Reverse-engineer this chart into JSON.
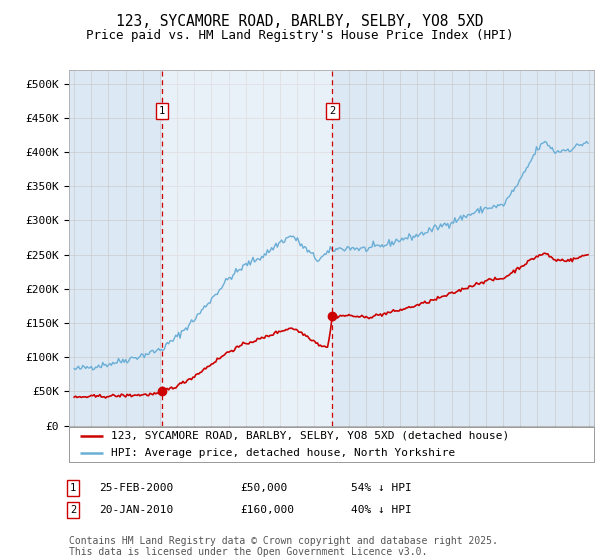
{
  "title": "123, SYCAMORE ROAD, BARLBY, SELBY, YO8 5XD",
  "subtitle": "Price paid vs. HM Land Registry's House Price Index (HPI)",
  "background_color": "#dce9f5",
  "plot_bg_color": "#dce9f5",
  "fig_bg_color": "#ffffff",
  "legend_label_red": "123, SYCAMORE ROAD, BARLBY, SELBY, YO8 5XD (detached house)",
  "legend_label_blue": "HPI: Average price, detached house, North Yorkshire",
  "annotation1_label": "1",
  "annotation1_date": "25-FEB-2000",
  "annotation1_price": "£50,000",
  "annotation1_hpi": "54% ↓ HPI",
  "annotation1_year": 2000.13,
  "annotation1_value": 50000,
  "annotation2_label": "2",
  "annotation2_date": "20-JAN-2010",
  "annotation2_price": "£160,000",
  "annotation2_hpi": "40% ↓ HPI",
  "annotation2_year": 2010.05,
  "annotation2_value": 160000,
  "footer": "Contains HM Land Registry data © Crown copyright and database right 2025.\nThis data is licensed under the Open Government Licence v3.0.",
  "ylim": [
    0,
    520000
  ],
  "yticks": [
    0,
    50000,
    100000,
    150000,
    200000,
    250000,
    300000,
    350000,
    400000,
    450000,
    500000
  ],
  "ytick_labels": [
    "£0",
    "£50K",
    "£100K",
    "£150K",
    "£200K",
    "£250K",
    "£300K",
    "£350K",
    "£400K",
    "£450K",
    "£500K"
  ],
  "hpi_color": "#6aaed6",
  "shade_color": "#dce9f5",
  "sale_color": "#cc0000",
  "vline_color": "#cc0000",
  "grid_color": "#cccccc",
  "title_fontsize": 10.5,
  "subtitle_fontsize": 9,
  "axis_fontsize": 8,
  "legend_fontsize": 8,
  "footer_fontsize": 7,
  "xmin": 1994.7,
  "xmax": 2025.3
}
